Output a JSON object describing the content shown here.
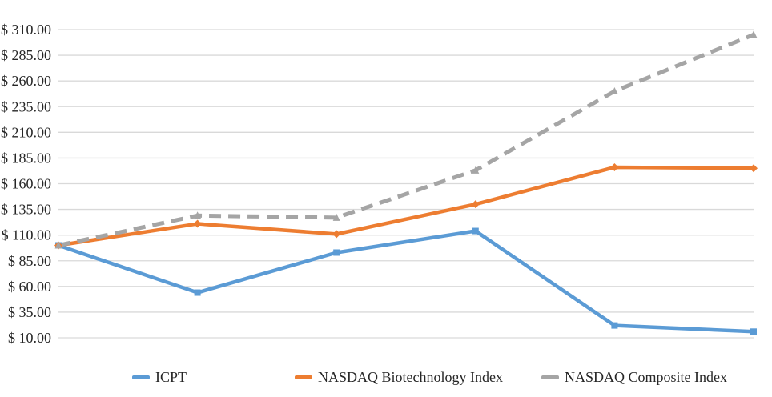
{
  "chart": {
    "title": "",
    "legend_labels": {
      "s1": "ICPT",
      "s2": "NASDAQ Biotechnology Index",
      "s3": "NASDAQ Composite Index"
    }
  },
  "chart_data": {
    "type": "line",
    "x": [
      1,
      2,
      3,
      4,
      5,
      6
    ],
    "x_axis_labels_visible": false,
    "grid": "horizontal",
    "gridline_color": "#D9D9D9",
    "text_color": "#262626",
    "legend_position": "bottom",
    "y_axis": {
      "min": 10,
      "max": 310,
      "step": 25,
      "tick_values": [
        310,
        285,
        260,
        235,
        210,
        185,
        160,
        135,
        110,
        85,
        60,
        35,
        10
      ],
      "tick_labels": [
        "$ 310.00",
        "$ 285.00",
        "$ 260.00",
        "$ 235.00",
        "$ 210.00",
        "$ 185.00",
        "$ 160.00",
        "$ 135.00",
        "$ 110.00",
        "$ 85.00",
        "$ 60.00",
        "$ 35.00",
        "$ 10.00"
      ]
    },
    "series": [
      {
        "name": "ICPT",
        "color": "#5B9BD5",
        "line_style": "solid",
        "marker": "square",
        "values": [
          100,
          54,
          93,
          114,
          22,
          16
        ]
      },
      {
        "name": "NASDAQ Biotechnology Index",
        "color": "#ED7D31",
        "line_style": "solid",
        "marker": "diamond",
        "values": [
          100,
          121,
          111,
          140,
          176,
          175
        ]
      },
      {
        "name": "NASDAQ Composite Index",
        "color": "#A5A5A5",
        "line_style": "dashed",
        "marker": "triangle",
        "values": [
          100,
          129,
          127,
          173,
          250,
          305
        ]
      }
    ]
  }
}
